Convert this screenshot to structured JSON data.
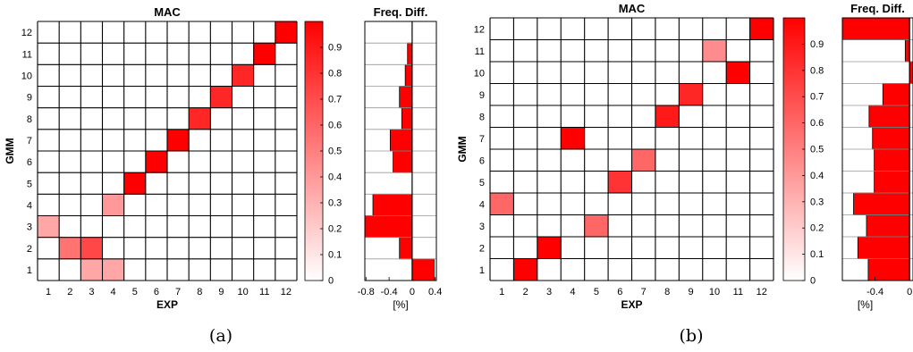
{
  "chart_data": [
    {
      "type": "heatmap",
      "panel": "a",
      "caption": "(a)",
      "title": "MAC",
      "xlabel": "EXP",
      "ylabel": "GMM",
      "x_ticks": [
        "1",
        "2",
        "3",
        "4",
        "5",
        "6",
        "7",
        "8",
        "9",
        "10",
        "11",
        "12"
      ],
      "y_ticks": [
        "1",
        "2",
        "3",
        "4",
        "5",
        "6",
        "7",
        "8",
        "9",
        "10",
        "11",
        "12"
      ],
      "cells": [
        {
          "gmm": 1,
          "exp": 3,
          "value": 0.35
        },
        {
          "gmm": 1,
          "exp": 4,
          "value": 0.35
        },
        {
          "gmm": 2,
          "exp": 2,
          "value": 0.55
        },
        {
          "gmm": 2,
          "exp": 3,
          "value": 0.72
        },
        {
          "gmm": 3,
          "exp": 1,
          "value": 0.35
        },
        {
          "gmm": 4,
          "exp": 4,
          "value": 0.4
        },
        {
          "gmm": 5,
          "exp": 5,
          "value": 1.0
        },
        {
          "gmm": 6,
          "exp": 6,
          "value": 1.0
        },
        {
          "gmm": 7,
          "exp": 7,
          "value": 1.0
        },
        {
          "gmm": 8,
          "exp": 8,
          "value": 0.85
        },
        {
          "gmm": 9,
          "exp": 9,
          "value": 0.85
        },
        {
          "gmm": 10,
          "exp": 10,
          "value": 0.85
        },
        {
          "gmm": 11,
          "exp": 11,
          "value": 1.0
        },
        {
          "gmm": 12,
          "exp": 12,
          "value": 1.0
        }
      ],
      "colorbar": {
        "ticks": [
          "0",
          "0.1",
          "0.2",
          "0.3",
          "0.4",
          "0.5",
          "0.6",
          "0.7",
          "0.8",
          "0.9"
        ],
        "range": [
          0,
          1
        ]
      },
      "freq_diff": {
        "title": "Freq. Diff.",
        "xlabel": "[%]",
        "x_ticks": [
          "-0.8",
          "-0.4",
          "0",
          "0.4"
        ],
        "xlim": [
          -0.82,
          0.42
        ],
        "values": [
          0.38,
          -0.22,
          -0.82,
          -0.68,
          0.0,
          -0.33,
          -0.38,
          -0.18,
          -0.22,
          -0.12,
          -0.08,
          0.0
        ]
      }
    },
    {
      "type": "heatmap",
      "panel": "b",
      "caption": "(b)",
      "title": "MAC",
      "xlabel": "EXP",
      "ylabel": "GMM",
      "x_ticks": [
        "1",
        "2",
        "3",
        "4",
        "5",
        "6",
        "7",
        "8",
        "9",
        "10",
        "11",
        "12"
      ],
      "y_ticks": [
        "1",
        "2",
        "3",
        "4",
        "5",
        "6",
        "7",
        "8",
        "9",
        "10",
        "11",
        "12"
      ],
      "cells": [
        {
          "gmm": 1,
          "exp": 2,
          "value": 1.0
        },
        {
          "gmm": 2,
          "exp": 3,
          "value": 1.0
        },
        {
          "gmm": 3,
          "exp": 5,
          "value": 0.6
        },
        {
          "gmm": 4,
          "exp": 1,
          "value": 0.6
        },
        {
          "gmm": 5,
          "exp": 6,
          "value": 0.8
        },
        {
          "gmm": 6,
          "exp": 7,
          "value": 0.6
        },
        {
          "gmm": 7,
          "exp": 4,
          "value": 1.0
        },
        {
          "gmm": 8,
          "exp": 8,
          "value": 0.9
        },
        {
          "gmm": 9,
          "exp": 9,
          "value": 0.85
        },
        {
          "gmm": 10,
          "exp": 11,
          "value": 1.0
        },
        {
          "gmm": 11,
          "exp": 10,
          "value": 0.45
        },
        {
          "gmm": 12,
          "exp": 12,
          "value": 1.0
        }
      ],
      "colorbar": {
        "ticks": [
          "0",
          "0.1",
          "0.2",
          "0.3",
          "0.4",
          "0.5",
          "0.6",
          "0.7",
          "0.8",
          "0.9"
        ],
        "range": [
          0,
          1
        ]
      },
      "freq_diff": {
        "title": "Freq. Diff.",
        "xlabel": "[%]",
        "x_ticks": [
          "-0.4",
          "0"
        ],
        "xlim": [
          -0.78,
          0.04
        ],
        "values": [
          -0.48,
          -0.6,
          -0.5,
          -0.65,
          -0.41,
          -0.41,
          -0.43,
          -0.47,
          -0.31,
          0.04,
          -0.05,
          -0.78
        ]
      }
    }
  ]
}
